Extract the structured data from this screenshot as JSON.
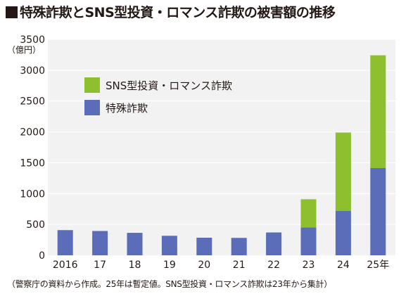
{
  "header": {
    "title": "特殊詐欺とSNS型投資・ロマンス詐欺の被害額の推移"
  },
  "footer": {
    "note": "（警察庁の資料から作成。25年は暫定値。SNS型投資・ロマンス詐欺は23年から集計）"
  },
  "chart_data": {
    "type": "bar",
    "stacked": true,
    "title": "特殊詐欺とSNS型投資・ロマンス詐欺の被害額の推移",
    "unit_label": "（億円）",
    "categories": [
      "2016",
      "17",
      "18",
      "19",
      "20",
      "21",
      "22",
      "23",
      "24",
      "25年"
    ],
    "series": [
      {
        "name": "特殊詐欺",
        "color": "#5b6db8",
        "values": [
          408,
          394,
          364,
          316,
          285,
          282,
          370,
          453,
          718,
          1414
        ]
      },
      {
        "name": "SNS型投資・ロマンス詐欺",
        "color": "#8dbf2e",
        "values": [
          0,
          0,
          0,
          0,
          0,
          0,
          0,
          455,
          1272,
          1828
        ]
      }
    ],
    "yticks": [
      "0",
      "500",
      "1000",
      "1500",
      "2000",
      "2500",
      "3000",
      "3500"
    ],
    "ylim": [
      0,
      3500
    ],
    "grid": true,
    "legend_position": "top-left"
  }
}
